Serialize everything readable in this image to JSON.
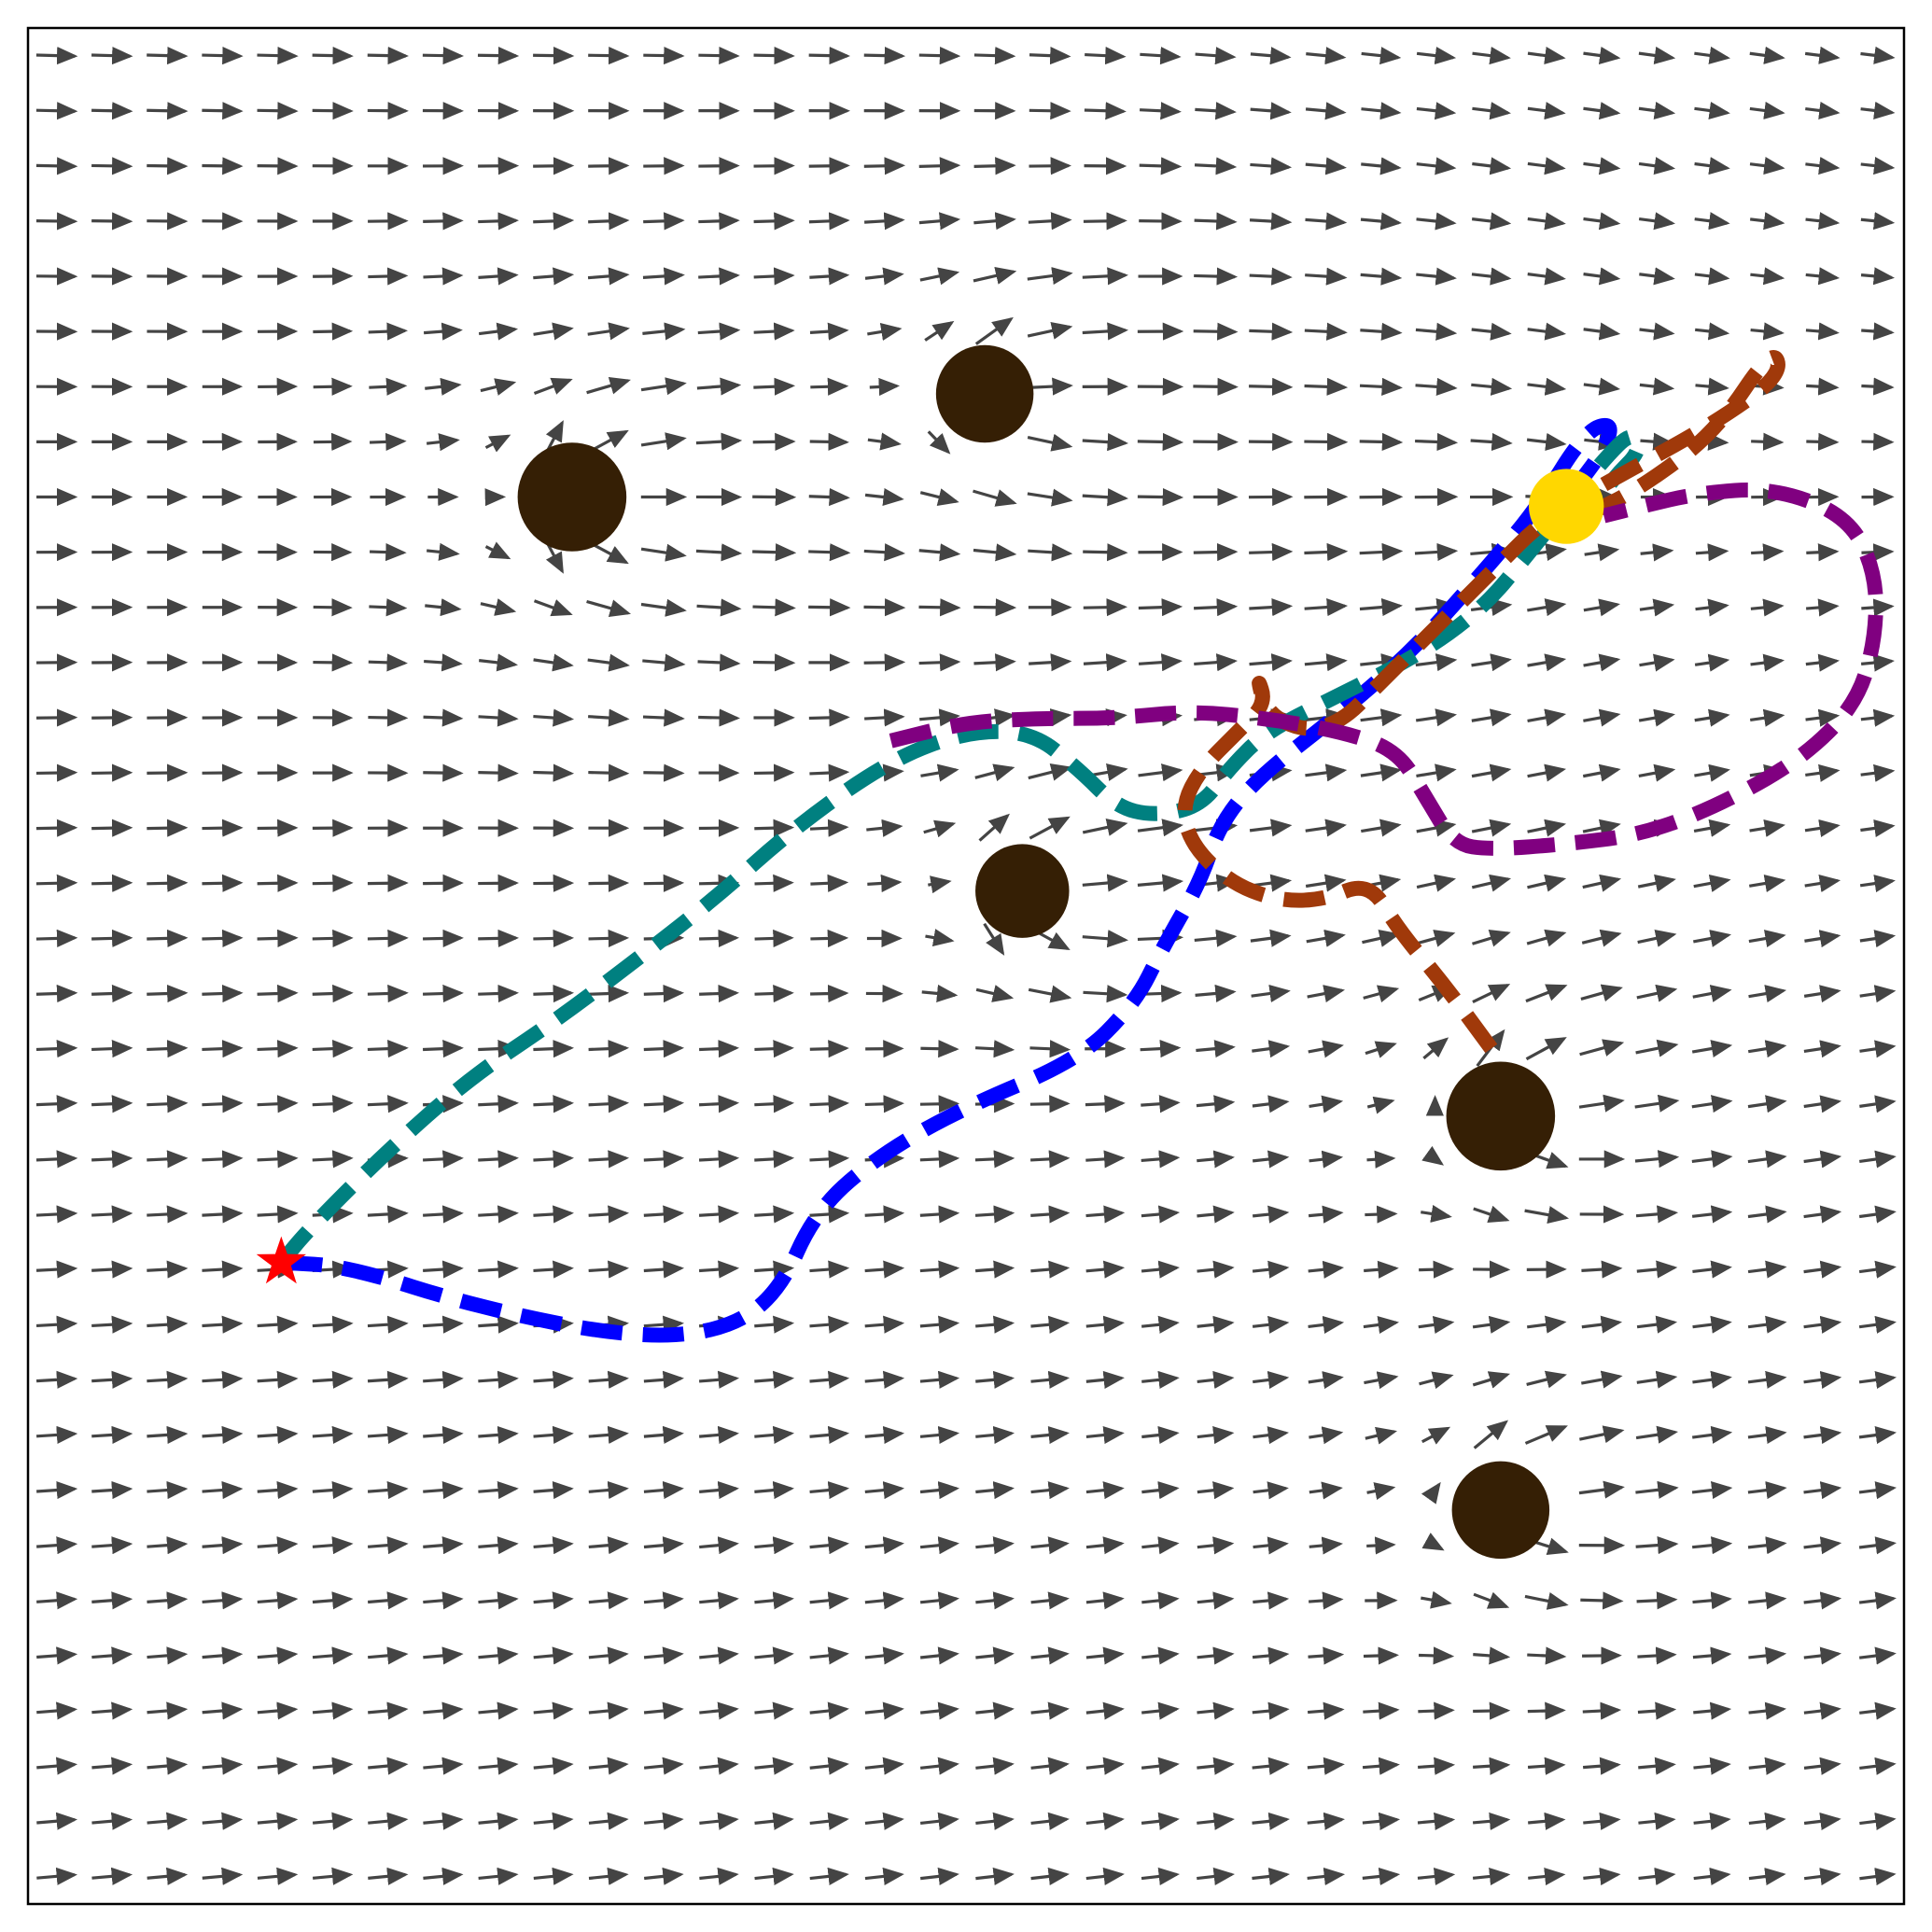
{
  "chart_data": {
    "type": "quiver",
    "title": "",
    "xlabel": "",
    "ylabel": "",
    "xlim": [
      0,
      1
    ],
    "ylim": [
      0,
      1
    ],
    "grid": false,
    "ticks": false,
    "legend": "none",
    "colors": {
      "arrow": "#444444",
      "obstacle": "#351f05",
      "goal": "#ffd700",
      "start": "#ff0000",
      "frame": "#000000"
    },
    "vector_field": {
      "grid_nx": 34,
      "grid_ny": 34,
      "uniform_flow": [
        1.0,
        0.0
      ],
      "obstacle_repulsion": 0.6,
      "goal_attraction": 0.15,
      "arrow_color": "#444444"
    },
    "obstacles": [
      {
        "x": 0.29,
        "y": 0.75,
        "r": 0.029
      },
      {
        "x": 0.51,
        "y": 0.805,
        "r": 0.026
      },
      {
        "x": 0.53,
        "y": 0.54,
        "r": 0.025
      },
      {
        "x": 0.785,
        "y": 0.42,
        "r": 0.029
      },
      {
        "x": 0.785,
        "y": 0.21,
        "r": 0.026
      }
    ],
    "goal": {
      "x": 0.82,
      "y": 0.745,
      "r": 0.02,
      "color": "#ffd700"
    },
    "start": {
      "x": 0.135,
      "y": 0.342,
      "color": "#ff0000"
    },
    "series": [
      {
        "color": "#0000ff",
        "points": [
          [
            0.135,
            0.342
          ],
          [
            0.17,
            0.34
          ],
          [
            0.24,
            0.318
          ],
          [
            0.32,
            0.302
          ],
          [
            0.37,
            0.305
          ],
          [
            0.4,
            0.325
          ],
          [
            0.42,
            0.37
          ],
          [
            0.455,
            0.4
          ],
          [
            0.5,
            0.425
          ],
          [
            0.56,
            0.45
          ],
          [
            0.59,
            0.48
          ],
          [
            0.605,
            0.51
          ],
          [
            0.625,
            0.545
          ],
          [
            0.635,
            0.575
          ],
          [
            0.655,
            0.6
          ],
          [
            0.7,
            0.635
          ],
          [
            0.74,
            0.67
          ],
          [
            0.78,
            0.715
          ],
          [
            0.805,
            0.745
          ],
          [
            0.83,
            0.785
          ],
          [
            0.845,
            0.79
          ],
          [
            0.84,
            0.775
          ],
          [
            0.825,
            0.755
          ]
        ]
      },
      {
        "color": "#008080",
        "points": [
          [
            0.135,
            0.342
          ],
          [
            0.15,
            0.36
          ],
          [
            0.19,
            0.4
          ],
          [
            0.235,
            0.44
          ],
          [
            0.28,
            0.47
          ],
          [
            0.32,
            0.5
          ],
          [
            0.365,
            0.535
          ],
          [
            0.41,
            0.575
          ],
          [
            0.46,
            0.61
          ],
          [
            0.5,
            0.625
          ],
          [
            0.535,
            0.625
          ],
          [
            0.56,
            0.605
          ],
          [
            0.58,
            0.585
          ],
          [
            0.6,
            0.58
          ],
          [
            0.625,
            0.585
          ],
          [
            0.64,
            0.605
          ],
          [
            0.66,
            0.625
          ],
          [
            0.7,
            0.645
          ],
          [
            0.74,
            0.665
          ],
          [
            0.775,
            0.69
          ],
          [
            0.8,
            0.72
          ],
          [
            0.82,
            0.745
          ],
          [
            0.84,
            0.77
          ],
          [
            0.855,
            0.785
          ],
          [
            0.86,
            0.775
          ],
          [
            0.845,
            0.76
          ],
          [
            0.835,
            0.745
          ]
        ]
      },
      {
        "color": "#a0390a",
        "points": [
          [
            0.78,
            0.456
          ],
          [
            0.755,
            0.49
          ],
          [
            0.73,
            0.52
          ],
          [
            0.715,
            0.545
          ],
          [
            0.69,
            0.535
          ],
          [
            0.665,
            0.535
          ],
          [
            0.64,
            0.545
          ],
          [
            0.62,
            0.565
          ],
          [
            0.615,
            0.585
          ],
          [
            0.625,
            0.605
          ],
          [
            0.645,
            0.625
          ],
          [
            0.66,
            0.64
          ],
          [
            0.655,
            0.655
          ],
          [
            0.66,
            0.635
          ],
          [
            0.68,
            0.625
          ],
          [
            0.7,
            0.63
          ],
          [
            0.72,
            0.65
          ],
          [
            0.75,
            0.68
          ],
          [
            0.78,
            0.71
          ],
          [
            0.81,
            0.74
          ],
          [
            0.855,
            0.765
          ],
          [
            0.9,
            0.79
          ],
          [
            0.935,
            0.815
          ],
          [
            0.93,
            0.83
          ],
          [
            0.9,
            0.785
          ],
          [
            0.86,
            0.755
          ],
          [
            0.83,
            0.74
          ]
        ]
      },
      {
        "color": "#800080",
        "points": [
          [
            0.46,
            0.62
          ],
          [
            0.5,
            0.63
          ],
          [
            0.54,
            0.632
          ],
          [
            0.58,
            0.632
          ],
          [
            0.62,
            0.636
          ],
          [
            0.66,
            0.632
          ],
          [
            0.7,
            0.625
          ],
          [
            0.73,
            0.615
          ],
          [
            0.745,
            0.59
          ],
          [
            0.76,
            0.565
          ],
          [
            0.78,
            0.562
          ],
          [
            0.82,
            0.565
          ],
          [
            0.86,
            0.57
          ],
          [
            0.9,
            0.585
          ],
          [
            0.945,
            0.61
          ],
          [
            0.975,
            0.64
          ],
          [
            0.985,
            0.675
          ],
          [
            0.985,
            0.71
          ],
          [
            0.97,
            0.74
          ],
          [
            0.93,
            0.755
          ],
          [
            0.89,
            0.752
          ],
          [
            0.86,
            0.745
          ],
          [
            0.84,
            0.74
          ]
        ]
      }
    ]
  }
}
